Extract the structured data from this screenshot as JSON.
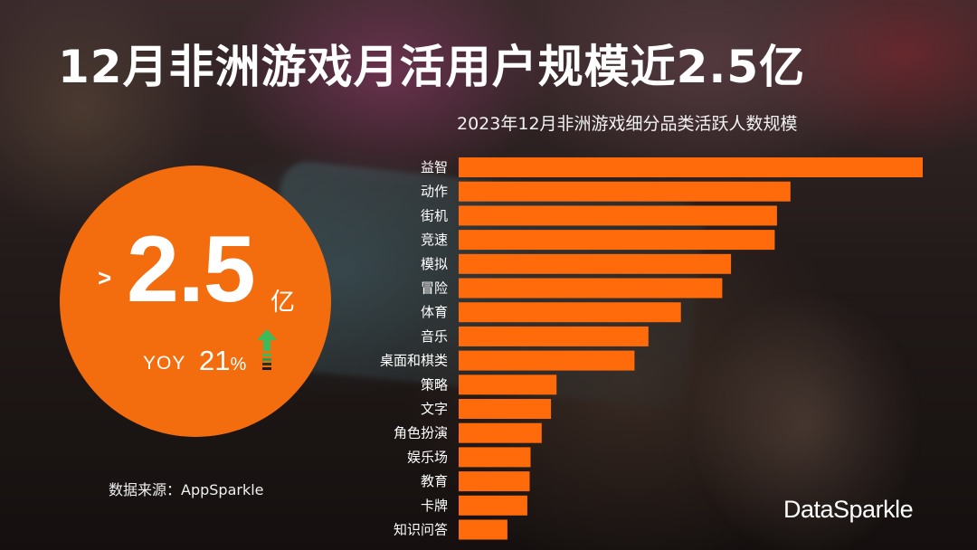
{
  "title": "12月非洲游戏月活用户规模近2.5亿",
  "highlight": {
    "prefix": ">",
    "value": "2.5",
    "unit": "亿",
    "yoy_label": "YOY",
    "yoy_value": "21",
    "yoy_unit": "%"
  },
  "source": "数据来源：AppSparkle",
  "logo": "DataSparkle",
  "colors": {
    "accent": "#f36d0f",
    "bar": "#ff6a0a",
    "arrow": "#3dbb5a"
  },
  "chart_data": {
    "type": "bar",
    "orientation": "horizontal",
    "title": "2023年12月非洲游戏细分品类活跃人数规模",
    "categories": [
      "益智",
      "动作",
      "街机",
      "竞速",
      "模拟",
      "冒险",
      "体育",
      "音乐",
      "桌面和棋类",
      "策略",
      "文字",
      "角色扮演",
      "娱乐场",
      "教育",
      "卡牌",
      "知识问答"
    ],
    "values": [
      100,
      71.5,
      68.6,
      68.1,
      58.7,
      56.8,
      47.9,
      40.9,
      37.9,
      21.1,
      19.9,
      17.9,
      15.5,
      15.3,
      14.8,
      10.5
    ],
    "xlim": [
      0,
      100
    ],
    "grid": false,
    "legend": "none"
  }
}
